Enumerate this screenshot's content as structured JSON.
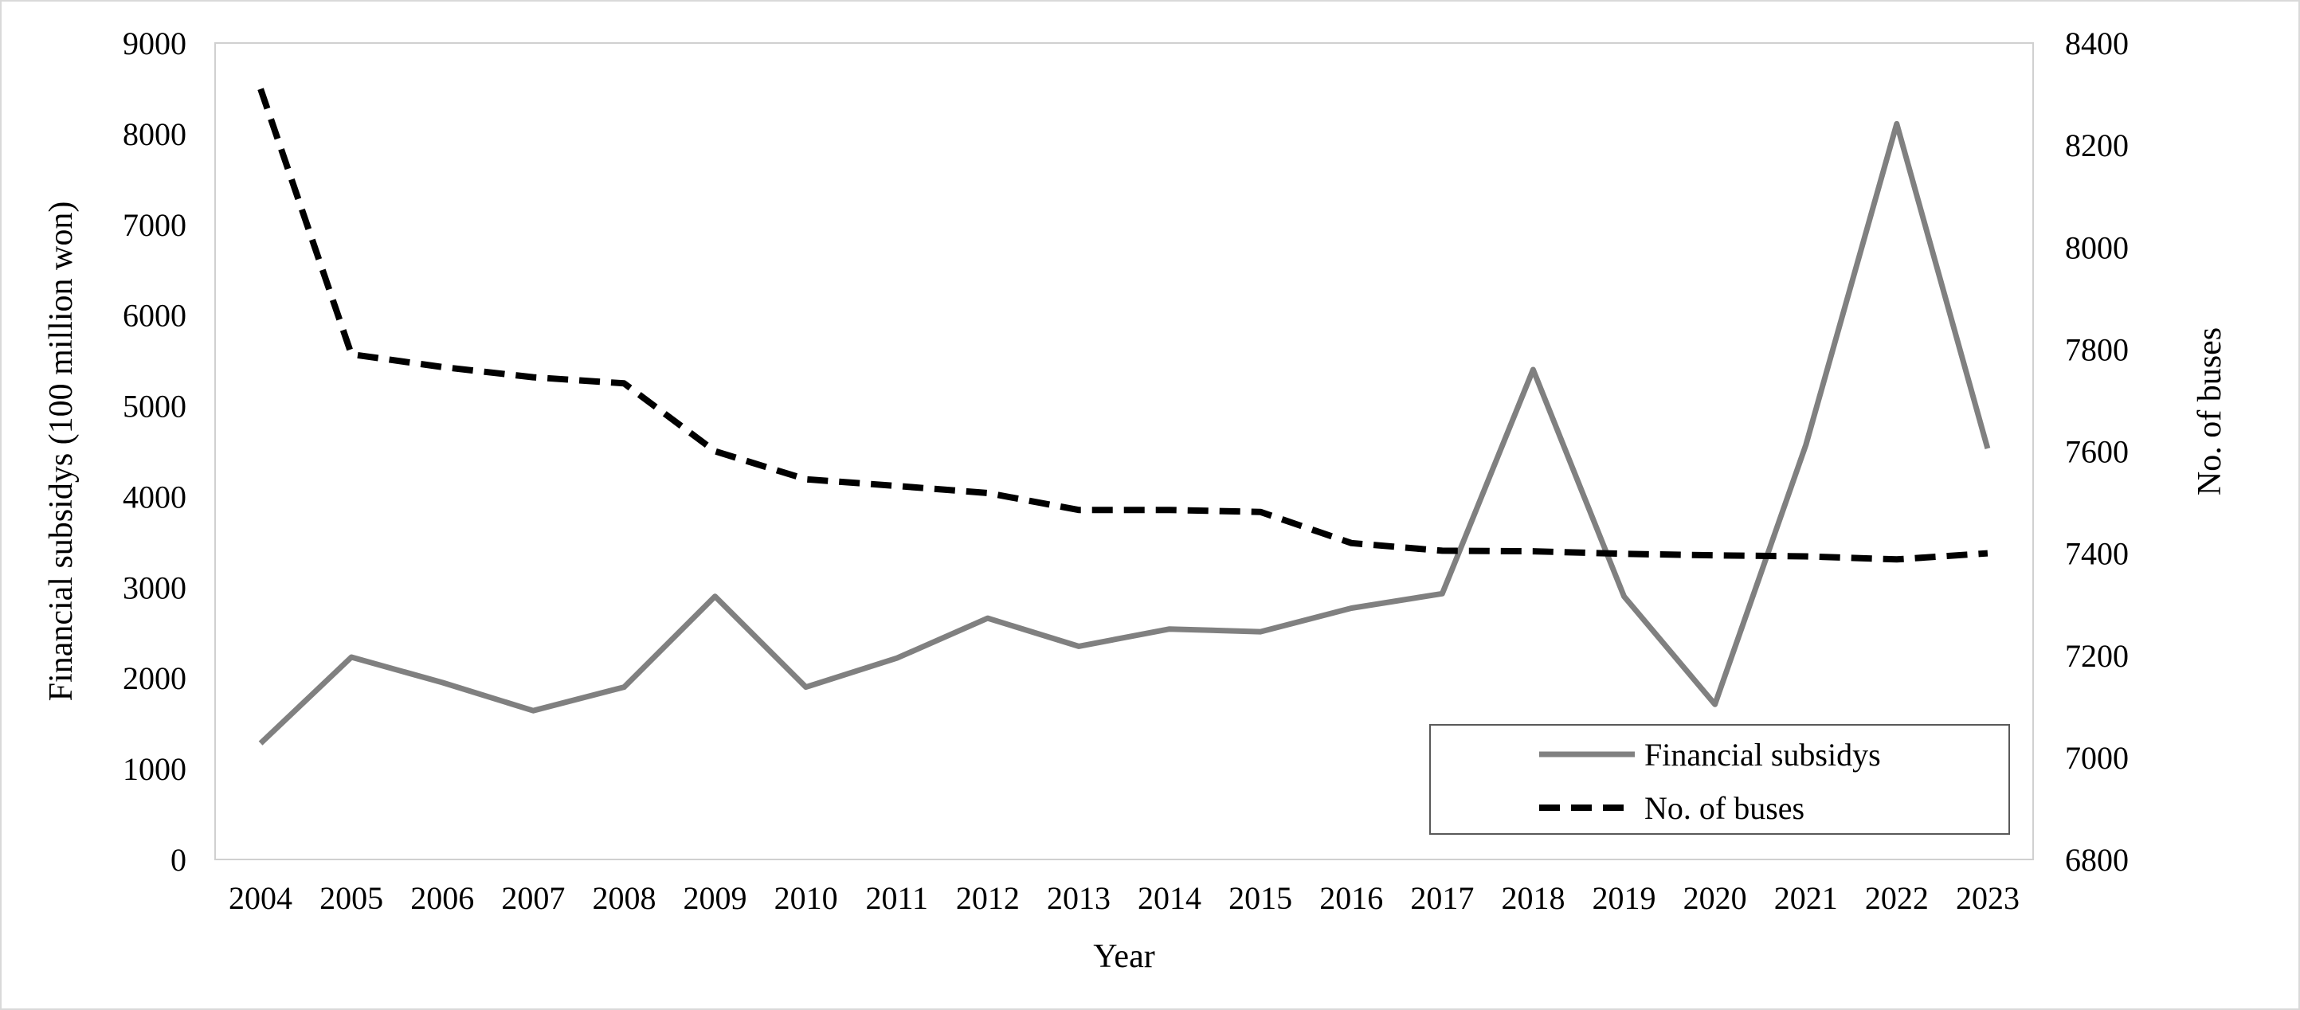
{
  "chart_data": {
    "type": "line",
    "title": "",
    "xlabel": "Year",
    "ylabel_left": "Financial subsidys (100 million won)",
    "ylabel_right": "No. of  buses",
    "categories": [
      "2004",
      "2005",
      "2006",
      "2007",
      "2008",
      "2009",
      "2010",
      "2011",
      "2012",
      "2013",
      "2014",
      "2015",
      "2016",
      "2017",
      "2018",
      "2019",
      "2020",
      "2021",
      "2022",
      "2023"
    ],
    "y_left_lim": [
      0,
      9000
    ],
    "y_left_ticks": [
      "0",
      "1000",
      "2000",
      "3000",
      "4000",
      "5000",
      "6000",
      "7000",
      "8000",
      "9000"
    ],
    "y_right_lim": [
      6800,
      8400
    ],
    "y_right_ticks": [
      "6800",
      "7000",
      "7200",
      "7400",
      "7600",
      "7800",
      "8000",
      "8200",
      "8400"
    ],
    "grid": false,
    "legend_position": "bottom-right",
    "series": [
      {
        "name": "Financial subsidys",
        "axis": "left",
        "style": "solid",
        "color": "#808080",
        "values": [
          1280,
          2230,
          1950,
          1640,
          1900,
          2900,
          1900,
          2220,
          2660,
          2350,
          2540,
          2510,
          2770,
          2930,
          5400,
          2900,
          1710,
          4570,
          8110,
          4530
        ]
      },
      {
        "name": "No. of buses",
        "axis": "right",
        "style": "dashed",
        "color": "#000000",
        "values": [
          8310,
          7790,
          7765,
          7745,
          7733,
          7600,
          7545,
          7532,
          7518,
          7485,
          7485,
          7481,
          7420,
          7405,
          7404,
          7399,
          7396,
          7394,
          7388,
          7400
        ]
      }
    ]
  }
}
